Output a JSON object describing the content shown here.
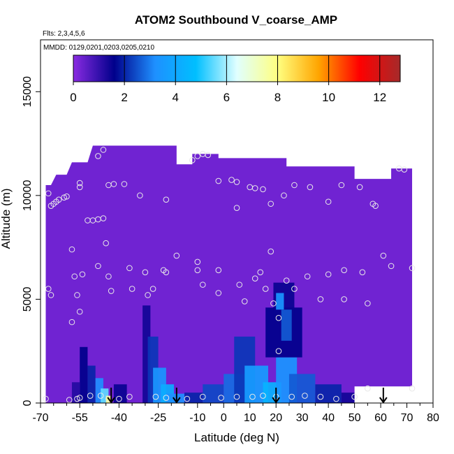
{
  "chart_data": {
    "type": "heatmap",
    "title": "ATOM2 Southbound V_coarse_AMP",
    "subtitle_lines": [
      "Flts: 2,3,4,5,6",
      "MMDD: 0129,0201,0203,0205,0210"
    ],
    "xlabel": "Latitude (deg N)",
    "ylabel": "Altitude (m)",
    "xlim": [
      -70,
      80
    ],
    "ylim": [
      0,
      17500
    ],
    "x_ticks": [
      -70,
      -55,
      -40,
      -25,
      -10,
      0,
      10,
      20,
      30,
      40,
      50,
      60,
      70,
      80
    ],
    "x_minor_ticks": [
      -65,
      -60,
      -50,
      -45,
      -35,
      -30,
      -20,
      -15,
      -5,
      5,
      15,
      25,
      35,
      45,
      55,
      65,
      75
    ],
    "y_ticks": [
      0,
      5000,
      10000,
      15000
    ],
    "colorbar": {
      "min": 0,
      "max": 12.8,
      "ticks": [
        0,
        2,
        4,
        6,
        8,
        10,
        12
      ],
      "dividers": [
        2,
        4,
        6,
        8,
        10,
        12
      ],
      "colors": [
        "#8a2be2",
        "#00008b",
        "#1e90ff",
        "#00bfff",
        "#e0ffff",
        "#ffff80",
        "#ffa500",
        "#ff0000",
        "#a52a2a"
      ]
    },
    "background_value": 0.3,
    "cells": [
      {
        "x0": -55,
        "x1": -52,
        "y0": 0,
        "y1": 2700,
        "v": 1.6
      },
      {
        "x0": -52,
        "x1": -49,
        "y0": 0,
        "y1": 1800,
        "v": 2.0
      },
      {
        "x0": -49,
        "x1": -46,
        "y0": 0,
        "y1": 1200,
        "v": 3.2
      },
      {
        "x0": -47,
        "x1": -44,
        "y0": 0,
        "y1": 700,
        "v": 5.5
      },
      {
        "x0": -45,
        "x1": -43,
        "y0": 0,
        "y1": 350,
        "v": 8.0
      },
      {
        "x0": -58,
        "x1": -55,
        "y0": 0,
        "y1": 1000,
        "v": 1.2
      },
      {
        "x0": -42,
        "x1": -37,
        "y0": 0,
        "y1": 900,
        "v": 1.5
      },
      {
        "x0": -31,
        "x1": -28,
        "y0": 0,
        "y1": 4700,
        "v": 1.4
      },
      {
        "x0": -29,
        "x1": -25,
        "y0": 0,
        "y1": 3200,
        "v": 2.2
      },
      {
        "x0": -27,
        "x1": -22,
        "y0": 0,
        "y1": 1700,
        "v": 3.4
      },
      {
        "x0": -24,
        "x1": -19,
        "y0": 0,
        "y1": 900,
        "v": 4.2
      },
      {
        "x0": -22,
        "x1": -15,
        "y0": 0,
        "y1": 450,
        "v": 3.2
      },
      {
        "x0": -15,
        "x1": -8,
        "y0": 0,
        "y1": 500,
        "v": 2.0
      },
      {
        "x0": -8,
        "x1": 0,
        "y0": 0,
        "y1": 900,
        "v": 2.4
      },
      {
        "x0": 0,
        "x1": 8,
        "y0": 0,
        "y1": 1400,
        "v": 2.8
      },
      {
        "x0": 4,
        "x1": 12,
        "y0": 0,
        "y1": 3200,
        "v": 2.2
      },
      {
        "x0": 8,
        "x1": 17,
        "y0": 0,
        "y1": 1800,
        "v": 3.6
      },
      {
        "x0": 15,
        "x1": 22,
        "y0": 0,
        "y1": 1000,
        "v": 4.4
      },
      {
        "x0": 20,
        "x1": 28,
        "y0": 0,
        "y1": 2200,
        "v": 3.4
      },
      {
        "x0": 16,
        "x1": 30,
        "y0": 2200,
        "y1": 4600,
        "v": 1.6
      },
      {
        "x0": 19,
        "x1": 27,
        "y0": 4200,
        "y1": 5800,
        "v": 1.5
      },
      {
        "x0": 20,
        "x1": 23,
        "y0": 4500,
        "y1": 5300,
        "v": 3.4
      },
      {
        "x0": 22,
        "x1": 26,
        "y0": 3000,
        "y1": 4500,
        "v": 2.6
      },
      {
        "x0": 25,
        "x1": 35,
        "y0": 0,
        "y1": 1400,
        "v": 2.6
      },
      {
        "x0": 35,
        "x1": 45,
        "y0": 0,
        "y1": 900,
        "v": 2.0
      },
      {
        "x0": 45,
        "x1": 50,
        "y0": 0,
        "y1": 500,
        "v": 1.4
      }
    ],
    "data_markers": [
      [
        -67,
        10100
      ],
      [
        -66,
        9500
      ],
      [
        -65,
        9600
      ],
      [
        -64,
        9700
      ],
      [
        -63,
        9800
      ],
      [
        -61,
        9900
      ],
      [
        -60,
        9950
      ],
      [
        -67,
        5500
      ],
      [
        -66,
        5200
      ],
      [
        -58,
        7400
      ],
      [
        -57,
        6100
      ],
      [
        -56,
        5200
      ],
      [
        -55,
        4400
      ],
      [
        -54,
        6200
      ],
      [
        -58,
        3900
      ],
      [
        -55,
        10400
      ],
      [
        -55,
        10600
      ],
      [
        -52,
        8800
      ],
      [
        -50,
        8800
      ],
      [
        -48,
        8850
      ],
      [
        -46,
        8900
      ],
      [
        -48,
        11900
      ],
      [
        -46,
        12200
      ],
      [
        -44,
        10500
      ],
      [
        -42,
        10550
      ],
      [
        -38,
        10550
      ],
      [
        -45,
        7700
      ],
      [
        -44,
        6100
      ],
      [
        -48,
        6600
      ],
      [
        -43,
        5400
      ],
      [
        -35,
        5500
      ],
      [
        -36,
        6500
      ],
      [
        -30,
        6300
      ],
      [
        -27,
        5500
      ],
      [
        -23,
        6400
      ],
      [
        -22,
        6300
      ],
      [
        -29,
        5200
      ],
      [
        -32,
        10000
      ],
      [
        -22,
        9800
      ],
      [
        -18,
        7100
      ],
      [
        -12,
        11700
      ],
      [
        -10,
        11900
      ],
      [
        -8,
        12000
      ],
      [
        -6,
        11950
      ],
      [
        -2,
        10700
      ],
      [
        3,
        10750
      ],
      [
        5,
        10650
      ],
      [
        10,
        10400
      ],
      [
        12,
        10350
      ],
      [
        15,
        10300
      ],
      [
        18,
        9600
      ],
      [
        23,
        10000
      ],
      [
        27,
        10500
      ],
      [
        33,
        10400
      ],
      [
        40,
        9700
      ],
      [
        45,
        10500
      ],
      [
        52,
        10400
      ],
      [
        57,
        9600
      ],
      [
        58,
        9500
      ],
      [
        67,
        11300
      ],
      [
        69,
        11250
      ],
      [
        -10,
        6800
      ],
      [
        -10,
        6400
      ],
      [
        -8,
        5700
      ],
      [
        -2,
        6400
      ],
      [
        -2,
        5300
      ],
      [
        6,
        5700
      ],
      [
        5,
        9400
      ],
      [
        8,
        4900
      ],
      [
        12,
        6000
      ],
      [
        14,
        6300
      ],
      [
        16,
        5500
      ],
      [
        19,
        4800
      ],
      [
        21,
        4100
      ],
      [
        21,
        2500
      ],
      [
        18,
        7300
      ],
      [
        24,
        5900
      ],
      [
        27,
        5500
      ],
      [
        32,
        6100
      ],
      [
        37,
        5000
      ],
      [
        40,
        6200
      ],
      [
        46,
        6400
      ],
      [
        46,
        5000
      ],
      [
        53,
        6300
      ],
      [
        55,
        4800
      ],
      [
        61,
        7100
      ],
      [
        64,
        6600
      ],
      [
        72,
        6500
      ],
      [
        -68,
        200
      ],
      [
        -59,
        150
      ],
      [
        -56,
        200
      ],
      [
        -55,
        250
      ],
      [
        -51,
        350
      ],
      [
        -47,
        350
      ],
      [
        -44,
        200
      ],
      [
        -40,
        200
      ],
      [
        -36,
        300
      ],
      [
        -26,
        300
      ],
      [
        -22,
        250
      ],
      [
        -14,
        200
      ],
      [
        -8,
        300
      ],
      [
        -1,
        250
      ],
      [
        5,
        300
      ],
      [
        11,
        300
      ],
      [
        15,
        350
      ],
      [
        20,
        300
      ],
      [
        26,
        300
      ],
      [
        31,
        350
      ],
      [
        37,
        300
      ],
      [
        43,
        200
      ],
      [
        50,
        300
      ],
      [
        55,
        700
      ],
      [
        72,
        700
      ]
    ],
    "arrows": [
      -43,
      -18,
      20,
      61
    ],
    "mask_rect": {
      "x0": 50,
      "x1": 74,
      "y0": 0,
      "y1": 800
    },
    "top_boundary": [
      [
        -68,
        10500
      ],
      [
        -66,
        10500
      ],
      [
        -64,
        11000
      ],
      [
        -60,
        11000
      ],
      [
        -58,
        11600
      ],
      [
        -52,
        11600
      ],
      [
        -50,
        12400
      ],
      [
        -42,
        12400
      ],
      [
        -40,
        12400
      ],
      [
        -18,
        12400
      ],
      [
        -18,
        11500
      ],
      [
        -12,
        11500
      ],
      [
        -12,
        12000
      ],
      [
        -2,
        12000
      ],
      [
        -2,
        11800
      ],
      [
        24,
        11800
      ],
      [
        24,
        11400
      ],
      [
        50,
        11400
      ],
      [
        50,
        10800
      ],
      [
        64,
        10800
      ],
      [
        64,
        11300
      ],
      [
        72,
        11300
      ],
      [
        72,
        6600
      ]
    ]
  }
}
